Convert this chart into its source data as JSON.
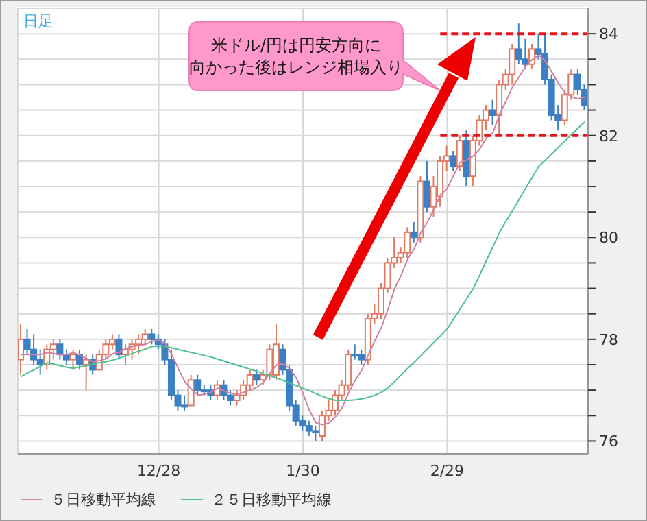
{
  "chart_data": {
    "type": "candlestick",
    "categories": [
      null,
      null,
      null,
      null,
      null,
      null,
      null,
      null,
      null,
      null,
      null,
      null,
      null,
      null,
      null,
      null,
      null,
      null,
      null,
      null,
      null,
      "12/28",
      null,
      null,
      null,
      null,
      null,
      null,
      null,
      null,
      null,
      null,
      null,
      null,
      null,
      null,
      null,
      null,
      null,
      null,
      null,
      null,
      null,
      "1/30",
      null,
      null,
      null,
      null,
      null,
      null,
      null,
      null,
      null,
      null,
      null,
      null,
      null,
      null,
      null,
      null,
      null,
      null,
      null,
      null,
      null,
      "2/29",
      null,
      null,
      null,
      null,
      null,
      null,
      null,
      null,
      null,
      null,
      null,
      null,
      null,
      null,
      null,
      null,
      null,
      null,
      null,
      null,
      null
    ],
    "ohlc": [
      [
        77.6,
        78.3,
        77.3,
        78.0
      ],
      [
        78.0,
        78.2,
        77.7,
        77.8
      ],
      [
        77.8,
        78.1,
        77.5,
        77.6
      ],
      [
        77.6,
        77.8,
        77.3,
        77.5
      ],
      [
        77.5,
        77.9,
        77.4,
        77.8
      ],
      [
        77.8,
        78.0,
        77.6,
        77.9
      ],
      [
        77.9,
        78.0,
        77.6,
        77.7
      ],
      [
        77.7,
        77.8,
        77.5,
        77.6
      ],
      [
        77.6,
        77.8,
        77.4,
        77.7
      ],
      [
        77.7,
        77.8,
        77.4,
        77.5
      ],
      [
        77.5,
        77.7,
        77.0,
        77.6
      ],
      [
        77.6,
        77.7,
        77.3,
        77.4
      ],
      [
        77.4,
        77.8,
        77.4,
        77.7
      ],
      [
        77.7,
        78.0,
        77.6,
        77.9
      ],
      [
        77.9,
        78.1,
        77.8,
        78.0
      ],
      [
        78.0,
        78.1,
        77.6,
        77.7
      ],
      [
        77.7,
        77.9,
        77.5,
        77.8
      ],
      [
        77.8,
        78.0,
        77.6,
        77.9
      ],
      [
        77.9,
        78.1,
        77.7,
        78.0
      ],
      [
        78.0,
        78.2,
        77.9,
        78.1
      ],
      [
        78.1,
        78.2,
        77.9,
        78.0
      ],
      [
        78.0,
        78.1,
        77.8,
        77.9
      ],
      [
        77.9,
        78.0,
        77.5,
        77.6
      ],
      [
        77.6,
        77.8,
        76.8,
        76.9
      ],
      [
        76.9,
        77.0,
        76.6,
        76.7
      ],
      [
        76.7,
        76.9,
        76.6,
        76.7
      ],
      [
        76.7,
        77.3,
        76.7,
        77.2
      ],
      [
        77.2,
        77.3,
        76.9,
        77.0
      ],
      [
        77.0,
        77.1,
        76.9,
        77.0
      ],
      [
        77.0,
        77.1,
        76.8,
        76.9
      ],
      [
        76.9,
        77.2,
        76.8,
        77.1
      ],
      [
        77.1,
        77.2,
        76.8,
        76.9
      ],
      [
        76.9,
        77.0,
        76.7,
        76.8
      ],
      [
        76.8,
        77.0,
        76.7,
        76.9
      ],
      [
        76.9,
        77.2,
        76.8,
        77.1
      ],
      [
        77.1,
        77.4,
        77.0,
        77.3
      ],
      [
        77.3,
        77.4,
        77.1,
        77.2
      ],
      [
        77.2,
        77.4,
        77.1,
        77.3
      ],
      [
        77.3,
        77.9,
        77.2,
        77.8
      ],
      [
        77.3,
        78.3,
        77.2,
        77.9
      ],
      [
        77.8,
        77.9,
        77.3,
        77.4
      ],
      [
        77.4,
        77.5,
        76.6,
        76.7
      ],
      [
        76.7,
        76.8,
        76.3,
        76.4
      ],
      [
        76.4,
        76.5,
        76.2,
        76.3
      ],
      [
        76.3,
        76.4,
        76.1,
        76.2
      ],
      [
        76.2,
        76.3,
        76.0,
        76.2
      ],
      [
        76.1,
        76.6,
        76.0,
        76.5
      ],
      [
        76.5,
        76.8,
        76.4,
        76.6
      ],
      [
        76.6,
        77.0,
        76.5,
        76.9
      ],
      [
        76.9,
        77.2,
        76.8,
        77.1
      ],
      [
        77.1,
        77.8,
        77.0,
        77.7
      ],
      [
        77.7,
        77.9,
        77.6,
        77.7
      ],
      [
        77.7,
        77.8,
        77.5,
        77.6
      ],
      [
        77.6,
        78.5,
        77.5,
        78.4
      ],
      [
        78.4,
        78.7,
        78.3,
        78.5
      ],
      [
        78.5,
        79.1,
        78.4,
        79.0
      ],
      [
        79.0,
        79.6,
        78.9,
        79.5
      ],
      [
        79.5,
        80.0,
        79.4,
        79.6
      ],
      [
        79.6,
        79.8,
        79.5,
        79.7
      ],
      [
        79.7,
        80.2,
        79.6,
        80.1
      ],
      [
        80.1,
        80.3,
        79.9,
        80.0
      ],
      [
        80.0,
        81.2,
        79.9,
        81.1
      ],
      [
        81.1,
        81.5,
        80.5,
        80.6
      ],
      [
        80.6,
        81.2,
        80.4,
        81.0
      ],
      [
        80.8,
        81.6,
        80.6,
        81.5
      ],
      [
        81.5,
        81.8,
        81.3,
        81.6
      ],
      [
        81.6,
        81.7,
        81.3,
        81.4
      ],
      [
        81.4,
        82.0,
        81.3,
        81.9
      ],
      [
        81.9,
        82.1,
        81.0,
        81.2
      ],
      [
        81.2,
        82.0,
        81.0,
        81.9
      ],
      [
        81.9,
        82.4,
        81.8,
        82.3
      ],
      [
        82.3,
        82.6,
        82.1,
        82.5
      ],
      [
        82.5,
        82.7,
        82.2,
        82.4
      ],
      [
        82.4,
        83.1,
        82.0,
        83.0
      ],
      [
        83.0,
        83.3,
        82.9,
        83.2
      ],
      [
        83.2,
        83.8,
        83.0,
        83.7
      ],
      [
        83.7,
        84.2,
        83.4,
        83.5
      ],
      [
        83.5,
        83.9,
        83.3,
        83.4
      ],
      [
        83.4,
        83.8,
        83.3,
        83.7
      ],
      [
        83.7,
        84.0,
        83.5,
        83.6
      ],
      [
        83.6,
        84.0,
        83.0,
        83.1
      ],
      [
        83.1,
        83.2,
        82.3,
        82.4
      ],
      [
        82.4,
        82.6,
        82.1,
        82.3
      ],
      [
        82.3,
        82.9,
        82.2,
        82.8
      ],
      [
        82.8,
        83.3,
        82.7,
        83.2
      ],
      [
        83.2,
        83.3,
        82.8,
        82.9
      ],
      [
        82.9,
        83.0,
        82.5,
        82.6
      ]
    ],
    "colors": [
      "#e07a62",
      "#3b7fc4",
      "#3b7fc4",
      "#3b7fc4",
      "#e07a62",
      "#e07a62",
      "#3b7fc4",
      "#3b7fc4",
      "#e07a62",
      "#3b7fc4",
      "#e07a62",
      "#3b7fc4",
      "#e07a62",
      "#e07a62",
      "#e07a62",
      "#3b7fc4",
      "#e07a62",
      "#e07a62",
      "#e07a62",
      "#e07a62",
      "#3b7fc4",
      "#3b7fc4",
      "#3b7fc4",
      "#3b7fc4",
      "#3b7fc4",
      "#3b7fc4",
      "#e07a62",
      "#3b7fc4",
      "#3b7fc4",
      "#3b7fc4",
      "#e07a62",
      "#3b7fc4",
      "#3b7fc4",
      "#e07a62",
      "#e07a62",
      "#e07a62",
      "#3b7fc4",
      "#e07a62",
      "#e07a62",
      "#e07a62",
      "#3b7fc4",
      "#3b7fc4",
      "#3b7fc4",
      "#3b7fc4",
      "#3b7fc4",
      "#3b7fc4",
      "#e07a62",
      "#e07a62",
      "#e07a62",
      "#e07a62",
      "#e07a62",
      "#3b7fc4",
      "#3b7fc4",
      "#e07a62",
      "#e07a62",
      "#e07a62",
      "#e07a62",
      "#e07a62",
      "#e07a62",
      "#e07a62",
      "#3b7fc4",
      "#e07a62",
      "#3b7fc4",
      "#e07a62",
      "#e07a62",
      "#e07a62",
      "#3b7fc4",
      "#e07a62",
      "#3b7fc4",
      "#e07a62",
      "#e07a62",
      "#e07a62",
      "#3b7fc4",
      "#e07a62",
      "#e07a62",
      "#e07a62",
      "#3b7fc4",
      "#3b7fc4",
      "#e07a62",
      "#3b7fc4",
      "#3b7fc4",
      "#3b7fc4",
      "#3b7fc4",
      "#e07a62",
      "#e07a62",
      "#3b7fc4",
      "#3b7fc4"
    ],
    "series": [
      {
        "type": "line",
        "name": "５日移動平均線",
        "color": "#d27fa0",
        "values": [
          77.7,
          77.7,
          77.7,
          77.7,
          77.74,
          77.72,
          77.7,
          77.7,
          77.74,
          77.68,
          77.62,
          77.56,
          77.58,
          77.62,
          77.72,
          77.74,
          77.82,
          77.86,
          77.88,
          77.9,
          77.96,
          77.98,
          77.92,
          77.7,
          77.42,
          77.16,
          77.02,
          76.9,
          76.92,
          76.96,
          77.04,
          76.98,
          76.94,
          76.92,
          76.96,
          77.0,
          77.06,
          77.16,
          77.34,
          77.5,
          77.52,
          77.42,
          77.24,
          76.94,
          76.6,
          76.36,
          76.32,
          76.36,
          76.48,
          76.66,
          76.96,
          77.2,
          77.4,
          77.7,
          77.98,
          78.24,
          78.6,
          79.0,
          79.26,
          79.58,
          79.78,
          80.1,
          80.3,
          80.56,
          80.84,
          80.96,
          81.22,
          81.48,
          81.52,
          81.6,
          81.74,
          81.96,
          82.06,
          82.42,
          82.68,
          82.96,
          83.16,
          83.36,
          83.5,
          83.58,
          83.46,
          83.24,
          83.02,
          82.84,
          82.76,
          82.72,
          82.76
        ]
      },
      {
        "type": "line",
        "name": "２５日移動平均線",
        "color": "#4fc18c",
        "values": [
          77.27,
          77.34,
          77.4,
          77.47,
          77.54,
          77.51,
          77.48,
          77.45,
          77.43,
          77.46,
          77.48,
          77.51,
          77.54,
          77.56,
          77.59,
          77.63,
          77.68,
          77.72,
          77.77,
          77.81,
          77.86,
          77.86,
          77.86,
          77.83,
          77.8,
          77.77,
          77.74,
          77.71,
          77.68,
          77.65,
          77.61,
          77.57,
          77.53,
          77.49,
          77.45,
          77.41,
          77.37,
          77.32,
          77.28,
          77.24,
          77.19,
          77.14,
          77.09,
          77.04,
          76.99,
          76.93,
          76.88,
          76.83,
          76.8,
          76.8,
          76.8,
          76.81,
          76.83,
          76.86,
          76.9,
          76.96,
          77.05,
          77.17,
          77.3,
          77.43,
          77.55,
          77.68,
          77.81,
          77.94,
          78.07,
          78.2,
          78.4,
          78.6,
          78.8,
          79.0,
          79.27,
          79.55,
          79.82,
          80.1,
          80.32,
          80.53,
          80.75,
          80.97,
          81.18,
          81.4,
          81.52,
          81.65,
          81.77,
          81.9,
          82.02,
          82.15,
          82.27
        ]
      }
    ],
    "ylim": [
      75.75,
      84.5
    ],
    "yticks": [
      76,
      {
        "value": 76.5,
        "label": null
      },
      {
        "value": 77,
        "label": null
      },
      {
        "value": 77.5,
        "label": null
      },
      78,
      {
        "value": 78.5,
        "label": null
      },
      {
        "value": 79,
        "label": null
      },
      {
        "value": 79.5,
        "label": null
      },
      80,
      {
        "value": 80.5,
        "label": null
      },
      {
        "value": 81,
        "label": null
      },
      {
        "value": 81.5,
        "label": null
      },
      82,
      {
        "value": 82.5,
        "label": null
      },
      {
        "value": 83,
        "label": null
      },
      {
        "value": 83.5,
        "label": null
      },
      84
    ],
    "ref_lines": [
      {
        "axis": "y",
        "value": 84,
        "color": "#e8141c",
        "line_style": "dashed"
      },
      {
        "axis": "y",
        "value": 82,
        "color": "#e8141c",
        "line_style": "dashed"
      }
    ],
    "annotations": [
      "日足",
      "米ドル/円は円安方向に",
      "向かった後はレンジ相場入り"
    ],
    "grid": true,
    "legend": "bottom"
  }
}
